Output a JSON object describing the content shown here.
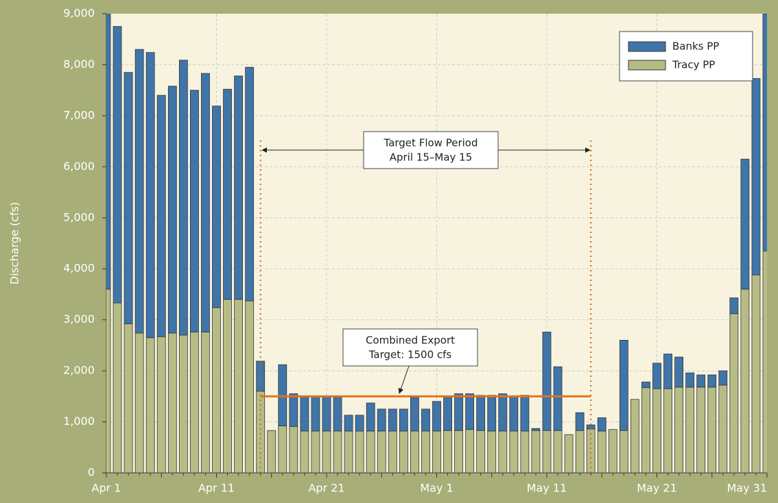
{
  "chart_data": {
    "type": "stacked_bar",
    "ylabel": "Discharge (cfs)",
    "categories": [
      "Apr 1",
      null,
      null,
      null,
      null,
      null,
      null,
      null,
      null,
      null,
      "Apr 11",
      null,
      null,
      null,
      null,
      null,
      null,
      null,
      null,
      null,
      "Apr 21",
      null,
      null,
      null,
      null,
      null,
      null,
      null,
      null,
      null,
      "May 1",
      null,
      null,
      null,
      null,
      null,
      null,
      null,
      null,
      null,
      "May 11",
      null,
      null,
      null,
      null,
      null,
      null,
      null,
      null,
      null,
      "May 21",
      null,
      null,
      null,
      null,
      null,
      null,
      null,
      null,
      null,
      "May 31"
    ],
    "series": [
      {
        "name": "Tracy PP",
        "color": "#b7bc86",
        "values": [
          3600,
          3330,
          2920,
          2740,
          2650,
          2670,
          2740,
          2700,
          2760,
          2760,
          3240,
          3400,
          3400,
          3370,
          1600,
          830,
          920,
          910,
          820,
          820,
          820,
          820,
          820,
          820,
          820,
          820,
          820,
          820,
          820,
          820,
          820,
          830,
          830,
          850,
          830,
          820,
          820,
          820,
          820,
          830,
          830,
          830,
          750,
          830,
          860,
          820,
          850,
          830,
          1440,
          1670,
          1650,
          1650,
          1680,
          1680,
          1680,
          1680,
          1720,
          3120,
          3600,
          3880,
          4350
        ]
      },
      {
        "name": "Banks PP",
        "color": "#3f75a9",
        "values": [
          5400,
          5420,
          4930,
          5560,
          5590,
          4730,
          4840,
          5390,
          4740,
          5070,
          3950,
          4120,
          4380,
          4580,
          590,
          0,
          1200,
          640,
          670,
          670,
          670,
          670,
          310,
          310,
          550,
          430,
          430,
          430,
          660,
          430,
          580,
          660,
          720,
          700,
          690,
          700,
          730,
          690,
          700,
          40,
          1930,
          1250,
          0,
          350,
          80,
          260,
          0,
          1770,
          0,
          110,
          500,
          680,
          590,
          280,
          240,
          240,
          280,
          310,
          2550,
          3850,
          4650
        ]
      }
    ],
    "target": 1500,
    "annotations": [
      "Target Flow Period",
      "April 15–May 15",
      "Combined Export",
      "Target: 1500 cfs"
    ],
    "ylim": [
      0,
      9000
    ],
    "yticks": [
      0,
      {
        "value": 1000,
        "label": "1,000"
      },
      {
        "value": 2000,
        "label": "2,000"
      },
      {
        "value": 3000,
        "label": "3,000"
      },
      {
        "value": 4000,
        "label": "4,000"
      },
      {
        "value": 5000,
        "label": "5,000"
      },
      {
        "value": 6000,
        "label": "6,000"
      },
      {
        "value": 7000,
        "label": "7,000"
      },
      {
        "value": 8000,
        "label": "8,000"
      },
      {
        "value": 9000,
        "label": "9,000"
      }
    ],
    "grid": true,
    "legend": "upper right"
  }
}
